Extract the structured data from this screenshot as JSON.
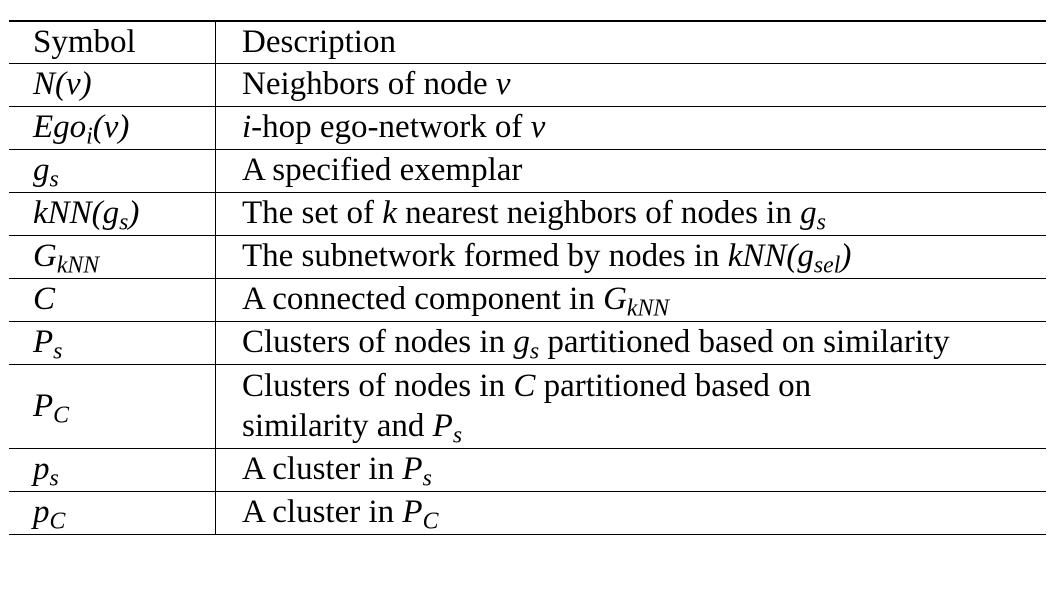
{
  "table": {
    "header": {
      "symbol": "Symbol",
      "description": "Description"
    },
    "rows": [
      {
        "symbol": {
          "base": "N(v)",
          "sub": ""
        },
        "description": {
          "pre": "Neighbors of node ",
          "math": "v",
          "post": ""
        }
      },
      {
        "symbol": {
          "base": "Ego",
          "sub": "i",
          "tail": "(v)"
        },
        "description": {
          "pre": "",
          "math": "i",
          "post": "-hop ego-network of ",
          "math2": "v"
        }
      },
      {
        "symbol": {
          "base": "g",
          "sub": "s"
        },
        "description": {
          "pre": "A specified exemplar"
        }
      },
      {
        "symbol": {
          "base": "kNN(g",
          "sub": "s",
          "tail": ")"
        },
        "description": {
          "pre": "The set of ",
          "math": "k",
          "post": " nearest neighbors of nodes in ",
          "math2": "g",
          "sub2": "s"
        }
      },
      {
        "symbol": {
          "base": "G",
          "sub": "kNN"
        },
        "description": {
          "pre": "The subnetwork formed by nodes in ",
          "math": "kNN(g",
          "sub": "sel",
          "math_tail": ")"
        }
      },
      {
        "symbol": {
          "base": "C",
          "sub": ""
        },
        "description": {
          "pre": "A connected component in ",
          "math": "G",
          "sub": "kNN"
        }
      },
      {
        "symbol": {
          "base": "P",
          "sub": "s"
        },
        "description": {
          "pre": "Clusters of nodes in ",
          "math": "g",
          "sub": "s",
          "post": " partitioned based on similarity"
        }
      },
      {
        "symbol": {
          "base": "P",
          "sub": "C"
        },
        "description": {
          "line1_pre": "Clusters of nodes in ",
          "line1_math": "C",
          "line1_post": " partitioned based on",
          "line2_pre": "similarity and ",
          "line2_math": "P",
          "line2_sub": "s"
        }
      },
      {
        "symbol": {
          "base": "p",
          "sub": "s"
        },
        "description": {
          "pre": "A cluster in ",
          "math": "P",
          "sub": "s"
        }
      },
      {
        "symbol": {
          "base": "p",
          "sub": "C"
        },
        "description": {
          "pre": "A cluster in ",
          "math": "P",
          "sub": "C"
        }
      }
    ]
  }
}
